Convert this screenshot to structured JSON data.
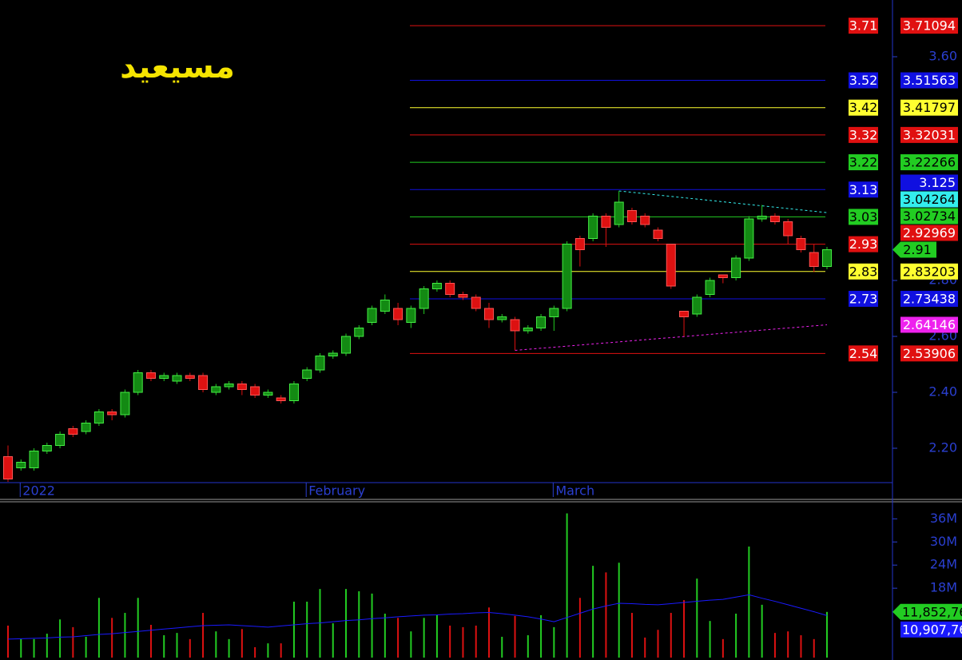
{
  "chart_data": [
    {
      "type": "candlestick",
      "title": "مسيعيد",
      "categories": [
        null,
        "2022",
        null,
        null,
        null,
        null,
        null,
        null,
        null,
        null,
        null,
        null,
        null,
        null,
        null,
        null,
        null,
        null,
        null,
        null,
        null,
        null,
        null,
        "February",
        null,
        null,
        null,
        null,
        null,
        null,
        null,
        null,
        null,
        null,
        null,
        null,
        null,
        null,
        null,
        null,
        null,
        null,
        "March",
        null,
        null,
        null,
        null,
        null,
        null,
        null,
        null,
        null,
        null,
        null,
        null,
        null,
        null,
        null,
        null,
        null,
        null,
        null,
        null,
        null
      ],
      "open": [
        2.17,
        2.13,
        2.13,
        2.19,
        2.21,
        2.27,
        2.26,
        2.29,
        2.33,
        2.32,
        2.4,
        2.47,
        2.45,
        2.44,
        2.46,
        2.46,
        2.4,
        2.42,
        2.43,
        2.42,
        2.39,
        2.38,
        2.37,
        2.45,
        2.48,
        2.53,
        2.54,
        2.6,
        2.65,
        2.69,
        2.7,
        2.65,
        2.7,
        2.77,
        2.79,
        2.75,
        2.74,
        2.7,
        2.66,
        2.66,
        2.62,
        2.63,
        2.67,
        2.7,
        2.95,
        2.95,
        3.03,
        3.0,
        3.05,
        3.03,
        2.98,
        2.93,
        2.69,
        2.68,
        2.75,
        2.82,
        2.81,
        2.88,
        3.02,
        3.03,
        3.01,
        2.95,
        2.9,
        2.85
      ],
      "high": [
        2.21,
        2.16,
        2.2,
        2.22,
        2.26,
        2.28,
        2.3,
        2.34,
        2.34,
        2.41,
        2.48,
        2.48,
        2.47,
        2.47,
        2.47,
        2.47,
        2.43,
        2.44,
        2.44,
        2.43,
        2.41,
        2.39,
        2.44,
        2.49,
        2.54,
        2.55,
        2.61,
        2.64,
        2.71,
        2.75,
        2.72,
        2.71,
        2.78,
        2.8,
        2.8,
        2.76,
        2.75,
        2.72,
        2.68,
        2.67,
        2.64,
        2.68,
        2.71,
        2.94,
        2.96,
        3.04,
        3.04,
        3.12,
        3.06,
        3.04,
        2.99,
        2.93,
        2.69,
        2.75,
        2.81,
        2.82,
        2.89,
        3.03,
        3.07,
        3.04,
        3.02,
        2.96,
        2.93,
        2.92
      ],
      "low": [
        2.08,
        2.12,
        2.12,
        2.18,
        2.2,
        2.24,
        2.25,
        2.28,
        2.3,
        2.31,
        2.39,
        2.44,
        2.44,
        2.43,
        2.44,
        2.4,
        2.39,
        2.41,
        2.39,
        2.38,
        2.38,
        2.36,
        2.36,
        2.44,
        2.47,
        2.52,
        2.53,
        2.59,
        2.64,
        2.68,
        2.64,
        2.63,
        2.68,
        2.76,
        2.74,
        2.73,
        2.69,
        2.63,
        2.65,
        2.55,
        2.61,
        2.62,
        2.62,
        2.69,
        2.85,
        2.94,
        2.92,
        2.99,
        3.0,
        2.99,
        2.94,
        2.77,
        2.6,
        2.67,
        2.74,
        2.79,
        2.8,
        2.87,
        3.01,
        3.0,
        2.93,
        2.9,
        2.83,
        2.84
      ],
      "close": [
        2.09,
        2.15,
        2.19,
        2.21,
        2.25,
        2.25,
        2.29,
        2.33,
        2.32,
        2.4,
        2.47,
        2.45,
        2.46,
        2.46,
        2.45,
        2.41,
        2.42,
        2.43,
        2.41,
        2.39,
        2.4,
        2.37,
        2.43,
        2.48,
        2.53,
        2.54,
        2.6,
        2.63,
        2.7,
        2.73,
        2.66,
        2.7,
        2.77,
        2.79,
        2.75,
        2.74,
        2.7,
        2.66,
        2.67,
        2.62,
        2.63,
        2.67,
        2.7,
        2.93,
        2.91,
        3.03,
        2.99,
        3.08,
        3.01,
        3.0,
        2.95,
        2.78,
        2.67,
        2.74,
        2.8,
        2.81,
        2.88,
        3.02,
        3.03,
        3.01,
        2.96,
        2.91,
        2.85,
        2.91
      ],
      "up_color": "#22cc22",
      "down_color": "#dd1111",
      "ylim": [
        2.08,
        3.8
      ],
      "yticks": [
        {
          "value": 2.2,
          "label": "2.20"
        },
        {
          "value": 2.4,
          "label": "2.40"
        },
        {
          "value": 2.6,
          "label": "2.60"
        },
        {
          "value": 2.8,
          "label": "2.80"
        },
        {
          "value": 3.6,
          "label": "3.60"
        }
      ],
      "levels": {
        "values": [
          3.71094,
          3.51563,
          3.41797,
          3.32031,
          3.22266,
          3.125,
          3.02734,
          2.92969,
          2.83203,
          2.73438,
          2.53906
        ],
        "value_labels": [
          "3.71",
          "3.52",
          "3.42",
          "3.32",
          "3.22",
          "3.13",
          "3.03",
          "2.93",
          "2.83",
          "2.73",
          "2.54"
        ],
        "colors": [
          "#e01010",
          "#1010e0",
          "#ffff30",
          "#e01010",
          "#22cc22",
          "#1010e0",
          "#22cc22",
          "#e01010",
          "#ffff30",
          "#1010e0",
          "#e01010"
        ]
      },
      "trendlines": [
        {
          "color": "#33eeee",
          "x": [
            47,
            63
          ],
          "values": [
            3.12,
            3.04264
          ]
        },
        {
          "color": "#ee22ee",
          "x": [
            39,
            63
          ],
          "values": [
            2.55,
            2.64146
          ]
        }
      ]
    },
    {
      "type": "volume",
      "series": [
        {
          "type": "bar",
          "values": [
            8.3,
            4.8,
            4.8,
            6.2,
            9.9,
            7.9,
            5.4,
            15.5,
            10.3,
            11.6,
            15.5,
            8.5,
            5.8,
            6.4,
            4.8,
            11.6,
            6.8,
            4.8,
            7.4,
            2.7,
            3.7,
            3.7,
            14.5,
            14.5,
            17.8,
            8.9,
            17.8,
            17.2,
            16.6,
            11.4,
            10.3,
            6.8,
            10.3,
            11.0,
            8.3,
            7.9,
            8.3,
            13.0,
            5.4,
            10.8,
            5.8,
            11.0,
            7.9,
            37.4,
            15.5,
            23.8,
            22.1,
            24.6,
            11.6,
            5.2,
            7.2,
            11.6,
            14.9,
            20.5,
            9.5,
            4.8,
            11.4,
            28.8,
            13.7,
            6.4,
            6.8,
            5.8,
            4.8,
            11.85276
          ],
          "color": "#22cc22"
        },
        {
          "type": "line",
          "values": [
            4.8,
            4.9,
            5.0,
            5.1,
            5.3,
            5.4,
            5.7,
            6.0,
            6.2,
            6.5,
            6.8,
            7.1,
            7.4,
            7.7,
            8.0,
            8.3,
            8.4,
            8.5,
            8.3,
            8.1,
            7.9,
            8.2,
            8.5,
            8.8,
            9.0,
            9.3,
            9.6,
            9.8,
            10.1,
            10.3,
            10.6,
            10.8,
            11.0,
            11.1,
            11.3,
            11.4,
            11.6,
            11.7,
            11.4,
            11.0,
            10.6,
            10.0,
            9.3,
            10.4,
            11.5,
            12.6,
            13.4,
            14.1,
            14.0,
            13.8,
            13.7,
            14.0,
            14.3,
            14.6,
            14.9,
            15.1,
            15.7,
            16.3,
            15.4,
            14.6,
            13.7,
            12.8,
            11.9,
            10.90776
          ],
          "color": "#1a1aff"
        }
      ],
      "last_labels": [
        "11,852,76",
        "10,907,76"
      ],
      "ylim": [
        0,
        40
      ],
      "yticks": [
        {
          "value": 18,
          "label": "18M"
        },
        {
          "value": 24,
          "label": "24M"
        },
        {
          "value": 30,
          "label": "30M"
        },
        {
          "value": 36,
          "label": "36M"
        }
      ]
    }
  ]
}
